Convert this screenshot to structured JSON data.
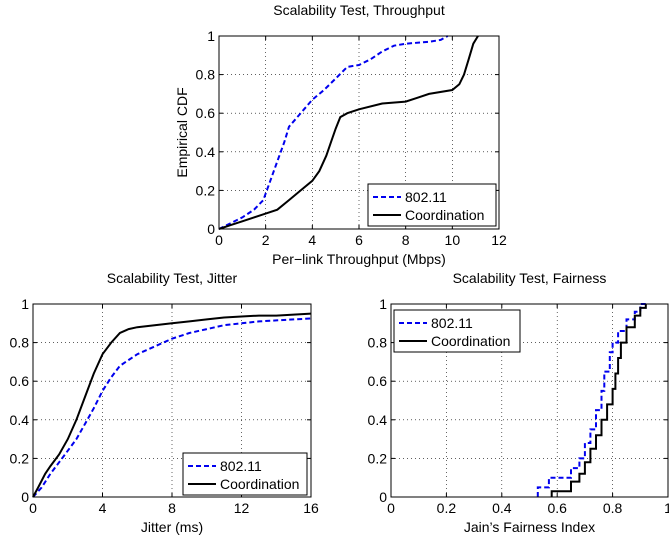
{
  "chart_data": [
    {
      "type": "line",
      "title": "Scalability Test, Throughput",
      "xlabel": "Per−link Throughput (Mbps)",
      "ylabel": "Empirical CDF",
      "xlim": [
        0,
        12
      ],
      "ylim": [
        0,
        1
      ],
      "x_ticks": [
        "0",
        "2",
        "4",
        "6",
        "8",
        "10",
        "12"
      ],
      "y_ticks": [
        "0",
        "0.2",
        "0.4",
        "0.6",
        "0.8",
        "1"
      ],
      "grid": true,
      "legend": "bottom-right",
      "series": [
        {
          "name": "802.11",
          "color": "#0000ee",
          "style": "dashed",
          "points": [
            [
              0,
              0
            ],
            [
              0.5,
              0.03
            ],
            [
              1,
              0.06
            ],
            [
              1.5,
              0.1
            ],
            [
              1.9,
              0.15
            ],
            [
              2.2,
              0.25
            ],
            [
              2.5,
              0.35
            ],
            [
              2.8,
              0.45
            ],
            [
              3,
              0.53
            ],
            [
              3.5,
              0.6
            ],
            [
              4,
              0.67
            ],
            [
              4.5,
              0.72
            ],
            [
              5,
              0.78
            ],
            [
              5.5,
              0.84
            ],
            [
              6,
              0.85
            ],
            [
              6.5,
              0.88
            ],
            [
              7,
              0.92
            ],
            [
              7.5,
              0.95
            ],
            [
              8,
              0.96
            ],
            [
              9,
              0.97
            ],
            [
              9.5,
              0.98
            ],
            [
              9.8,
              1.0
            ]
          ]
        },
        {
          "name": "Coordination",
          "color": "#000000",
          "style": "solid",
          "points": [
            [
              0,
              0
            ],
            [
              0.5,
              0.02
            ],
            [
              1,
              0.04
            ],
            [
              1.5,
              0.06
            ],
            [
              2,
              0.08
            ],
            [
              2.5,
              0.1
            ],
            [
              3,
              0.15
            ],
            [
              3.5,
              0.2
            ],
            [
              4,
              0.25
            ],
            [
              4.3,
              0.3
            ],
            [
              4.6,
              0.38
            ],
            [
              4.8,
              0.45
            ],
            [
              5,
              0.52
            ],
            [
              5.2,
              0.58
            ],
            [
              5.5,
              0.6
            ],
            [
              6,
              0.62
            ],
            [
              7,
              0.65
            ],
            [
              8,
              0.66
            ],
            [
              8.5,
              0.68
            ],
            [
              9,
              0.7
            ],
            [
              10,
              0.72
            ],
            [
              10.3,
              0.75
            ],
            [
              10.5,
              0.8
            ],
            [
              10.7,
              0.88
            ],
            [
              10.9,
              0.96
            ],
            [
              11.1,
              1.0
            ]
          ]
        }
      ]
    },
    {
      "type": "line",
      "title": "Scalability Test, Jitter",
      "xlabel": "Jitter (ms)",
      "ylabel": "",
      "xlim": [
        0,
        16
      ],
      "ylim": [
        0,
        1
      ],
      "x_ticks": [
        "0",
        "4",
        "8",
        "12",
        "16"
      ],
      "y_ticks": [
        "0",
        "0.2",
        "0.4",
        "0.6",
        "0.8",
        "1"
      ],
      "grid": true,
      "legend": "bottom-right",
      "series": [
        {
          "name": "802.11",
          "color": "#0000ee",
          "style": "dashed",
          "points": [
            [
              0,
              0
            ],
            [
              0.5,
              0.05
            ],
            [
              1,
              0.12
            ],
            [
              1.5,
              0.18
            ],
            [
              2,
              0.24
            ],
            [
              2.5,
              0.3
            ],
            [
              3,
              0.38
            ],
            [
              3.5,
              0.46
            ],
            [
              4,
              0.55
            ],
            [
              4.5,
              0.62
            ],
            [
              5,
              0.68
            ],
            [
              5.5,
              0.71
            ],
            [
              6,
              0.74
            ],
            [
              7,
              0.78
            ],
            [
              8,
              0.82
            ],
            [
              9,
              0.85
            ],
            [
              10,
              0.87
            ],
            [
              11,
              0.89
            ],
            [
              12,
              0.9
            ],
            [
              13,
              0.91
            ],
            [
              14,
              0.915
            ],
            [
              15,
              0.92
            ],
            [
              16,
              0.925
            ]
          ]
        },
        {
          "name": "Coordination",
          "color": "#000000",
          "style": "solid",
          "points": [
            [
              0,
              0
            ],
            [
              0.3,
              0.05
            ],
            [
              0.7,
              0.12
            ],
            [
              1,
              0.16
            ],
            [
              1.5,
              0.22
            ],
            [
              2,
              0.3
            ],
            [
              2.5,
              0.4
            ],
            [
              3,
              0.52
            ],
            [
              3.5,
              0.64
            ],
            [
              4,
              0.74
            ],
            [
              4.5,
              0.8
            ],
            [
              5,
              0.85
            ],
            [
              5.5,
              0.87
            ],
            [
              6,
              0.88
            ],
            [
              7,
              0.89
            ],
            [
              8,
              0.9
            ],
            [
              9,
              0.91
            ],
            [
              10,
              0.92
            ],
            [
              11,
              0.93
            ],
            [
              12,
              0.935
            ],
            [
              13,
              0.94
            ],
            [
              14,
              0.94
            ],
            [
              15,
              0.945
            ],
            [
              16,
              0.95
            ]
          ]
        }
      ]
    },
    {
      "type": "line",
      "title": "Scalability Test, Fairness",
      "xlabel": "Jain’s Fairness Index",
      "ylabel": "",
      "xlim": [
        0,
        1
      ],
      "ylim": [
        0,
        1
      ],
      "x_ticks": [
        "0",
        "0.2",
        "0.4",
        "0.6",
        "0.8",
        "1"
      ],
      "y_ticks": [
        "0",
        "0.2",
        "0.4",
        "0.6",
        "0.8",
        "1"
      ],
      "grid": true,
      "legend": "top-left",
      "series": [
        {
          "name": "802.11",
          "color": "#0000ee",
          "style": "dashed",
          "points": [
            [
              0.53,
              0
            ],
            [
              0.53,
              0.05
            ],
            [
              0.57,
              0.05
            ],
            [
              0.57,
              0.1
            ],
            [
              0.65,
              0.1
            ],
            [
              0.65,
              0.15
            ],
            [
              0.68,
              0.15
            ],
            [
              0.68,
              0.2
            ],
            [
              0.7,
              0.2
            ],
            [
              0.7,
              0.28
            ],
            [
              0.72,
              0.28
            ],
            [
              0.72,
              0.35
            ],
            [
              0.74,
              0.35
            ],
            [
              0.74,
              0.45
            ],
            [
              0.76,
              0.45
            ],
            [
              0.76,
              0.55
            ],
            [
              0.77,
              0.55
            ],
            [
              0.77,
              0.65
            ],
            [
              0.79,
              0.65
            ],
            [
              0.79,
              0.75
            ],
            [
              0.8,
              0.75
            ],
            [
              0.8,
              0.8
            ],
            [
              0.82,
              0.8
            ],
            [
              0.82,
              0.86
            ],
            [
              0.85,
              0.86
            ],
            [
              0.85,
              0.92
            ],
            [
              0.88,
              0.92
            ],
            [
              0.88,
              0.96
            ],
            [
              0.9,
              0.96
            ],
            [
              0.9,
              1.0
            ],
            [
              0.92,
              1.0
            ]
          ]
        },
        {
          "name": "Coordination",
          "color": "#000000",
          "style": "solid",
          "points": [
            [
              0.58,
              0
            ],
            [
              0.58,
              0.03
            ],
            [
              0.65,
              0.03
            ],
            [
              0.65,
              0.08
            ],
            [
              0.68,
              0.08
            ],
            [
              0.68,
              0.12
            ],
            [
              0.7,
              0.12
            ],
            [
              0.7,
              0.18
            ],
            [
              0.72,
              0.18
            ],
            [
              0.72,
              0.25
            ],
            [
              0.74,
              0.25
            ],
            [
              0.74,
              0.32
            ],
            [
              0.76,
              0.32
            ],
            [
              0.76,
              0.4
            ],
            [
              0.78,
              0.4
            ],
            [
              0.78,
              0.48
            ],
            [
              0.8,
              0.48
            ],
            [
              0.8,
              0.56
            ],
            [
              0.81,
              0.56
            ],
            [
              0.81,
              0.64
            ],
            [
              0.82,
              0.64
            ],
            [
              0.82,
              0.72
            ],
            [
              0.83,
              0.72
            ],
            [
              0.83,
              0.8
            ],
            [
              0.85,
              0.8
            ],
            [
              0.85,
              0.88
            ],
            [
              0.88,
              0.88
            ],
            [
              0.88,
              0.94
            ],
            [
              0.9,
              0.94
            ],
            [
              0.9,
              0.98
            ],
            [
              0.92,
              0.98
            ],
            [
              0.92,
              1.0
            ]
          ]
        }
      ]
    }
  ]
}
